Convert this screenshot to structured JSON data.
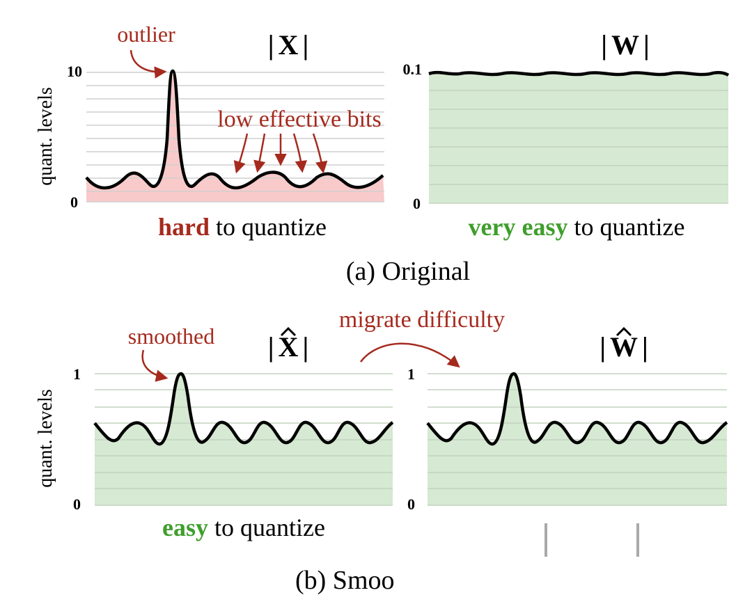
{
  "colors": {
    "accent_red": "#a52a1e",
    "accent_green": "#3f9e2c",
    "fill_red": "#f9caca",
    "fill_green": "#d6e9d2",
    "grid": "#cfcfcf",
    "curve": "#000000"
  },
  "ylabel": "quant. levels",
  "panels": {
    "x_orig": {
      "title": "|X|",
      "title_parts": {
        "left_bar": "|",
        "symbol": "X",
        "right_bar": "|"
      },
      "y_top": "10",
      "y_bottom": "0",
      "caption": {
        "highlight": "hard",
        "rest": " to quantize"
      },
      "annotation_outlier": "outlier",
      "annotation_bits": "low effective bits"
    },
    "w_orig": {
      "title": "|W|",
      "title_parts": {
        "left_bar": "|",
        "symbol": "W",
        "right_bar": "|"
      },
      "y_top": "0.1",
      "y_bottom": "0",
      "caption": {
        "highlight": "very easy",
        "rest": " to quantize"
      }
    },
    "x_smooth": {
      "title": "|X̂|",
      "title_parts": {
        "left_bar": "|",
        "symbol": "X",
        "right_bar": "|"
      },
      "y_top": "1",
      "y_bottom": "0",
      "caption": {
        "highlight": "easy",
        "rest": " to quantize"
      },
      "annotation_smoothed": "smoothed"
    },
    "w_smooth": {
      "title": "|Ŵ|",
      "title_parts": {
        "left_bar": "|",
        "symbol": "W",
        "right_bar": "|"
      },
      "y_top": "1",
      "y_bottom": "0"
    }
  },
  "migrate_label": "migrate difficulty",
  "section_a": "(a) Original",
  "section_b": "(b) Smoo"
}
